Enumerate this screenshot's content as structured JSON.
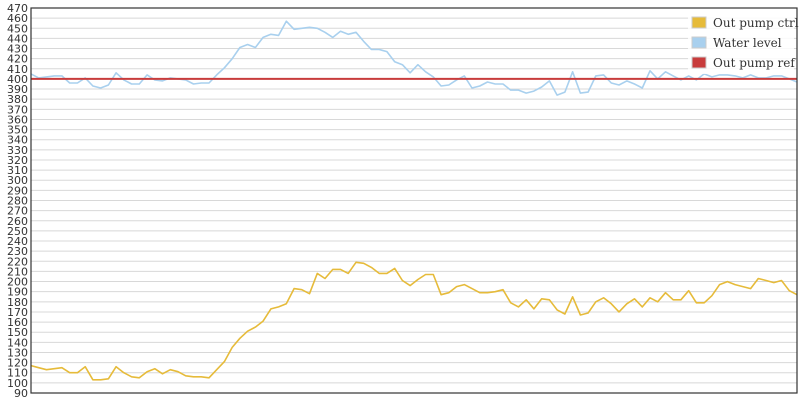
{
  "chart_data": {
    "type": "line",
    "title": "",
    "xlabel": "",
    "ylabel": "",
    "ylim": [
      90,
      470
    ],
    "ytick_step": 10,
    "grid": true,
    "legend_position": "top-right",
    "series": [
      {
        "name": "Out pump ctrl",
        "color": "#e6bb3a",
        "values": [
          117,
          115,
          113,
          114,
          115,
          110,
          110,
          116,
          103,
          103,
          104,
          116,
          110,
          106,
          105,
          111,
          114,
          109,
          113,
          111,
          107,
          106,
          106,
          105,
          113,
          121,
          135,
          144,
          151,
          155,
          161,
          173,
          175,
          178,
          193,
          192,
          188,
          208,
          203,
          212,
          212,
          208,
          219,
          218,
          214,
          208,
          208,
          213,
          201,
          196,
          202,
          207,
          207,
          187,
          189,
          195,
          197,
          193,
          189,
          189,
          190,
          192,
          179,
          175,
          182,
          173,
          183,
          182,
          172,
          168,
          185,
          167,
          169,
          180,
          184,
          178,
          170,
          178,
          183,
          175,
          184,
          180,
          189,
          182,
          182,
          191,
          179,
          179,
          186,
          197,
          200,
          197,
          195,
          193,
          203,
          201,
          199,
          201,
          191,
          187
        ]
      },
      {
        "name": "Water level",
        "color": "#a9d0ee",
        "values": [
          405,
          401,
          402,
          403,
          403,
          396,
          396,
          401,
          393,
          391,
          394,
          406,
          399,
          395,
          395,
          404,
          399,
          398,
          401,
          400,
          399,
          395,
          396,
          396,
          404,
          411,
          420,
          431,
          434,
          431,
          441,
          444,
          443,
          457,
          449,
          450,
          451,
          450,
          446,
          441,
          447,
          444,
          446,
          437,
          429,
          429,
          427,
          417,
          414,
          406,
          414,
          407,
          402,
          393,
          394,
          399,
          403,
          391,
          393,
          397,
          395,
          395,
          389,
          389,
          386,
          388,
          392,
          398,
          384,
          387,
          407,
          386,
          387,
          403,
          404,
          396,
          394,
          398,
          395,
          391,
          408,
          400,
          407,
          403,
          399,
          403,
          399,
          405,
          402,
          404,
          404,
          403,
          401,
          404,
          401,
          401,
          403,
          403,
          400,
          397
        ]
      },
      {
        "name": "Out pump ref",
        "color": "#c83c3c",
        "values": [
          400,
          400,
          400,
          400,
          400,
          400,
          400,
          400,
          400,
          400,
          400,
          400,
          400,
          400,
          400,
          400,
          400,
          400,
          400,
          400,
          400,
          400,
          400,
          400,
          400,
          400,
          400,
          400,
          400,
          400,
          400,
          400,
          400,
          400,
          400,
          400,
          400,
          400,
          400,
          400,
          400,
          400,
          400,
          400,
          400,
          400,
          400,
          400,
          400,
          400,
          400,
          400,
          400,
          400,
          400,
          400,
          400,
          400,
          400,
          400,
          400,
          400,
          400,
          400,
          400,
          400,
          400,
          400,
          400,
          400,
          400,
          400,
          400,
          400,
          400,
          400,
          400,
          400,
          400,
          400,
          400,
          400,
          400,
          400,
          400,
          400,
          400,
          400,
          400,
          400,
          400,
          400,
          400,
          400,
          400,
          400,
          400,
          400,
          400,
          400
        ]
      }
    ]
  }
}
